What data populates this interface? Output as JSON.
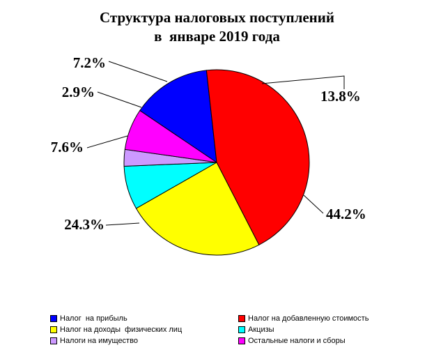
{
  "chart_data": {
    "type": "pie",
    "title_lines": [
      "Структура налоговых поступлений",
      "в  январе 2019 года"
    ],
    "slices": [
      {
        "name": "Налог  на прибыль",
        "value": 13.8,
        "label": "13.8%",
        "color": "#0000FF"
      },
      {
        "name": "Налог на добавленную стоимость",
        "value": 44.2,
        "label": "44.2%",
        "color": "#FF0000"
      },
      {
        "name": "Налог на доходы  физических лиц",
        "value": 24.3,
        "label": "24.3%",
        "color": "#FFFF00"
      },
      {
        "name": "Акцизы",
        "value": 7.6,
        "label": "7.6%",
        "color": "#00FFFF"
      },
      {
        "name": "Налоги на имущество",
        "value": 2.9,
        "label": "2.9%",
        "color": "#CC99FF"
      },
      {
        "name": "Остальные налоги и сборы",
        "value": 7.2,
        "label": "7.2%",
        "color": "#FF00FF"
      }
    ],
    "legend_order": [
      0,
      1,
      2,
      3,
      4,
      5
    ],
    "legend_placement": "bottom"
  }
}
